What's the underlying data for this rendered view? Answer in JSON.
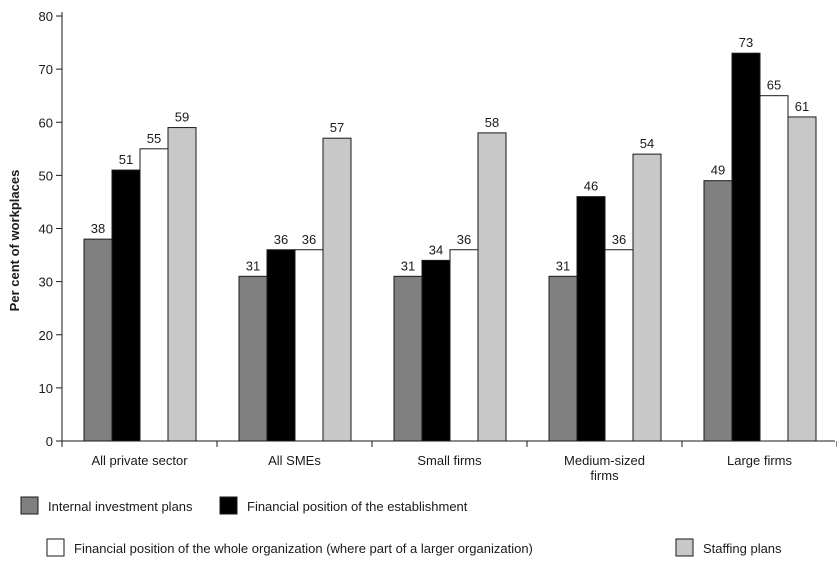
{
  "chart_data": {
    "type": "bar",
    "title": "",
    "xlabel": "",
    "ylabel": "Per cent of workplaces",
    "ylim": [
      0,
      80
    ],
    "yticks": [
      0,
      10,
      20,
      30,
      40,
      50,
      60,
      70,
      80
    ],
    "grid": false,
    "legend_position": "bottom",
    "categories": [
      [
        "All private sector"
      ],
      [
        "All SMEs"
      ],
      [
        "Small firms"
      ],
      [
        "Medium-sized",
        "firms"
      ],
      [
        "Large firms"
      ]
    ],
    "series": [
      {
        "name": "Internal investment plans",
        "color": "#808080",
        "values": [
          38,
          31,
          31,
          31,
          49
        ]
      },
      {
        "name": "Financial position of the establishment",
        "color": "#000000",
        "values": [
          51,
          36,
          34,
          46,
          73
        ]
      },
      {
        "name": "Financial position of the whole organization (where part of a larger organization)",
        "color": "#ffffff",
        "values": [
          55,
          36,
          36,
          36,
          65
        ]
      },
      {
        "name": "Staffing plans",
        "color": "#c8c8c8",
        "values": [
          59,
          57,
          58,
          54,
          61
        ]
      }
    ]
  }
}
